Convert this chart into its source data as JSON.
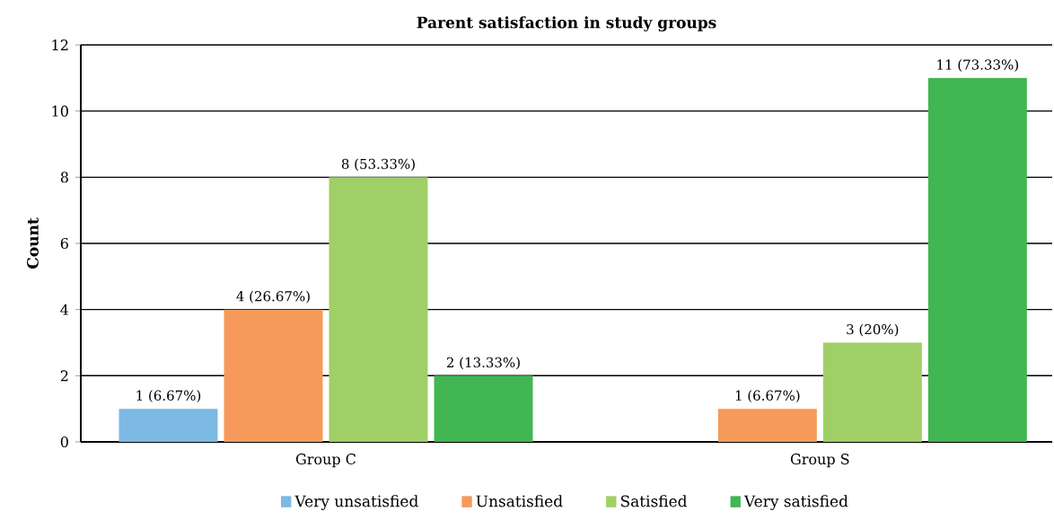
{
  "chart_data": {
    "type": "bar",
    "title": "Parent satisfaction in study groups",
    "ylabel": "Count",
    "categories": [
      "Group C",
      "Group S"
    ],
    "series": [
      {
        "name": "Very unsatisfied",
        "color": "#7cb9e3",
        "values": [
          1,
          null
        ],
        "value_labels": [
          "1 (6.67%)",
          null
        ]
      },
      {
        "name": "Unsatisfied",
        "color": "#f59a5a",
        "values": [
          4,
          1
        ],
        "value_labels": [
          "4 (26.67%)",
          "1 (6.67%)"
        ]
      },
      {
        "name": "Satisfied",
        "color": "#a0cf67",
        "values": [
          8,
          3
        ],
        "value_labels": [
          "8 (53.33%)",
          "3 (20%)"
        ]
      },
      {
        "name": "Very satisfied",
        "color": "#41b653",
        "values": [
          2,
          11
        ],
        "value_labels": [
          "2 (13.33%)",
          "11 (73.33%)"
        ]
      }
    ],
    "ylim": [
      0,
      12
    ],
    "yticks": [
      0,
      2,
      4,
      6,
      8,
      10,
      12
    ],
    "grid": "y",
    "legend": "bottom"
  }
}
